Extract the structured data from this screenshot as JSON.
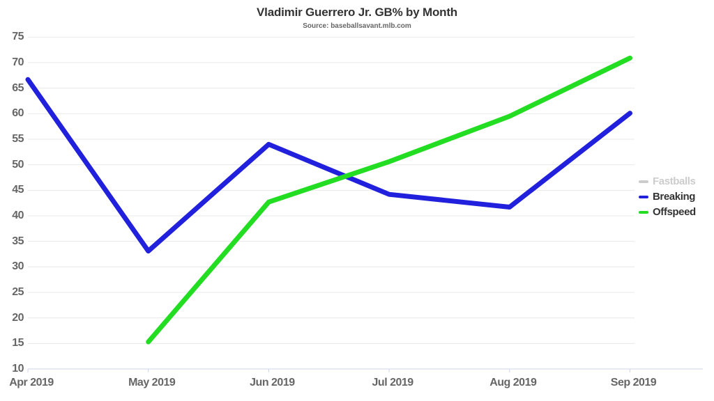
{
  "title": "Vladimir Guerrero Jr. GB% by Month",
  "subtitle": "Source: baseballsavant.mlb.com",
  "colors": {
    "title_text": "#333333",
    "subtitle_text": "#666666",
    "axis_label_text": "#666666",
    "grid_line": "#e8e8e8",
    "axis_line": "#ccd6eb",
    "hidden_legend_text": "#cccccc",
    "background": "#ffffff"
  },
  "chart_data": {
    "type": "line",
    "categories": [
      "Apr 2019",
      "May 2019",
      "Jun 2019",
      "Jul 2019",
      "Aug 2019",
      "Sep 2019"
    ],
    "series": [
      {
        "name": "Fastballs",
        "color": "#cccccc",
        "visible": false,
        "values": null
      },
      {
        "name": "Breaking",
        "color": "#2020dd",
        "visible": true,
        "values": [
          66.7,
          33.1,
          54.0,
          44.2,
          41.7,
          60.1
        ]
      },
      {
        "name": "Offspeed",
        "color": "#22dd22",
        "visible": true,
        "values": [
          null,
          15.3,
          42.7,
          50.6,
          59.5,
          70.9
        ]
      }
    ],
    "title": "Vladimir Guerrero Jr. GB% by Month",
    "subtitle": "Source: baseballsavant.mlb.com",
    "xlabel": "",
    "ylabel": "",
    "ylim": [
      10,
      75
    ],
    "ytick_step": 5,
    "grid": "horizontal",
    "legend_position": "right",
    "line_width": 7
  }
}
